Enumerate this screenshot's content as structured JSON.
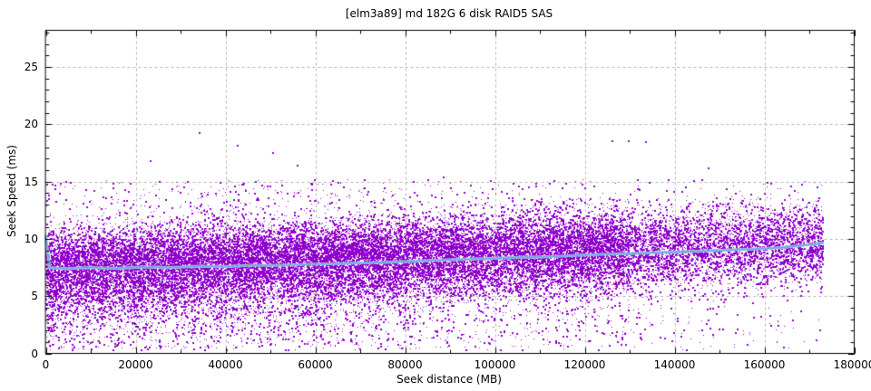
{
  "title": "[elm3a89] md 182G 6 disk RAID5 SAS",
  "chart_data": {
    "type": "scatter",
    "title": "[elm3a89] md 182G 6 disk RAID5 SAS",
    "xlabel": "Seek distance (MB)",
    "ylabel": "Seek Speed (ms)",
    "xlim": [
      0,
      180000
    ],
    "ylim": [
      0,
      28.2
    ],
    "x_major_ticks": [
      0,
      20000,
      40000,
      60000,
      80000,
      100000,
      120000,
      140000,
      160000,
      180000
    ],
    "x_tick_labels": [
      "0",
      "20000",
      "40000",
      "60000",
      "80000",
      "100000",
      "120000",
      "140000",
      "160000",
      "180000"
    ],
    "y_major_ticks": [
      0,
      5,
      10,
      15,
      20,
      25
    ],
    "y_tick_labels": [
      "0",
      "5",
      "10",
      "15",
      "20",
      "25"
    ],
    "x_minor_step": 10000,
    "y_minor_step": 1,
    "grid": "dashed gray lines at major ticks, both axes",
    "grid_color": "#b3b3b3",
    "frame_color": "#000000",
    "point_color": "#9400d3",
    "point_color_alt": "#7c00ad",
    "trend_color": "#74a7dc",
    "trend_glow_color": "#a5c8ea",
    "n_points": 30000,
    "seed": 1337,
    "x_segments": [
      {
        "range": [
          0,
          80000
        ],
        "weight": 0.55
      },
      {
        "range": [
          80000,
          130000
        ],
        "weight": 0.3
      },
      {
        "range": [
          130000,
          173000
        ],
        "weight": 0.15
      }
    ],
    "y_model": {
      "mean_at_x0": 7.35,
      "mean_at_xmax": 9.55,
      "xmax": 173000,
      "sd_low_at_x0": 2.35,
      "sd_low_at_xmax": 1.7,
      "sd_high": 1.75,
      "min": 0.3,
      "max": 13.6,
      "low_tail_prob": 0.045,
      "low_tail_range": [
        0.3,
        4.0
      ],
      "high_tail_prob": 0.013,
      "high_tail_range": [
        12.6,
        15.2
      ]
    },
    "outliers": [
      [
        23200,
        16.8
      ],
      [
        34200,
        19.3
      ],
      [
        42600,
        18.2
      ],
      [
        50500,
        17.5
      ],
      [
        56000,
        16.4
      ],
      [
        65000,
        14.9
      ],
      [
        88500,
        15.4
      ],
      [
        99000,
        15.1
      ],
      [
        109000,
        14.6
      ],
      [
        126000,
        18.6
      ],
      [
        129600,
        18.6
      ],
      [
        133500,
        18.5
      ],
      [
        138500,
        15.2
      ],
      [
        147500,
        16.2
      ]
    ],
    "trend": [
      [
        0,
        10.2
      ],
      [
        800,
        7.5
      ],
      [
        4000,
        7.4
      ],
      [
        10000,
        7.5
      ],
      [
        16000,
        7.42
      ],
      [
        22000,
        7.55
      ],
      [
        28000,
        7.5
      ],
      [
        34000,
        7.62
      ],
      [
        40000,
        7.58
      ],
      [
        46000,
        7.7
      ],
      [
        52000,
        7.68
      ],
      [
        58000,
        7.78
      ],
      [
        64000,
        7.82
      ],
      [
        70000,
        7.9
      ],
      [
        76000,
        7.95
      ],
      [
        82000,
        8.05
      ],
      [
        88000,
        8.15
      ],
      [
        94000,
        8.22
      ],
      [
        100000,
        8.3
      ],
      [
        106000,
        8.38
      ],
      [
        112000,
        8.45
      ],
      [
        118000,
        8.55
      ],
      [
        124000,
        8.65
      ],
      [
        130000,
        8.72
      ],
      [
        136000,
        8.8
      ],
      [
        142000,
        8.88
      ],
      [
        148000,
        8.95
      ],
      [
        154000,
        9.05
      ],
      [
        160000,
        9.15
      ],
      [
        164000,
        9.25
      ],
      [
        168000,
        9.4
      ],
      [
        171000,
        9.55
      ],
      [
        173000,
        9.65
      ]
    ]
  }
}
